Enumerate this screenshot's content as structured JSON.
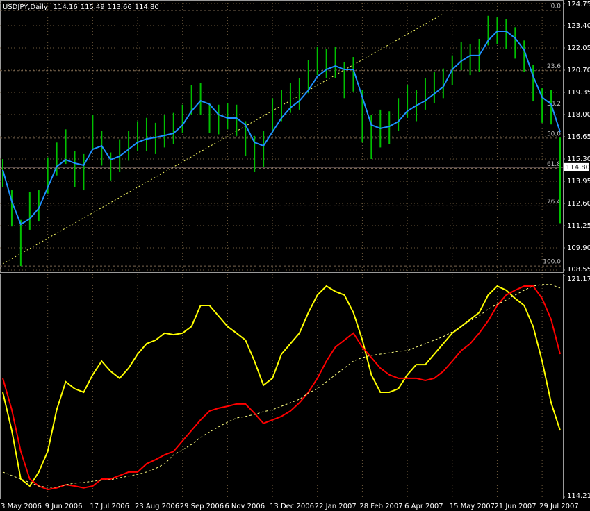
{
  "chart_data": [
    {
      "type": "ohlc",
      "title": "USDJPY,Daily",
      "header_values": [
        114.16,
        115.49,
        113.66,
        {
          "value": 114.8,
          "label": "114.80"
        }
      ],
      "ylim": [
        108.55,
        124.75
      ],
      "yticks": [
        108.55,
        {
          "value": 109.9,
          "label": "109.90"
        },
        111.25,
        {
          "value": 112.6,
          "label": "112.60"
        },
        113.95,
        {
          "value": 115.3,
          "label": "115.30"
        },
        116.65,
        {
          "value": 118,
          "label": "118.00"
        },
        119.35,
        {
          "value": 120.7,
          "label": "120.70"
        },
        122.05,
        {
          "value": 123.4,
          "label": "123.40"
        },
        124.75
      ],
      "grid": true,
      "bar_color": "#00c000",
      "ma_color": "#1e90ff",
      "high": [
        115.3,
        113.4,
        111.6,
        113.3,
        113.4,
        115.4,
        116.3,
        117.1,
        115.8,
        115.6,
        118.0,
        117.0,
        115.7,
        116.5,
        117.0,
        117.6,
        117.8,
        117.5,
        118.0,
        118.1,
        118.6,
        119.8,
        119.9,
        118.7,
        118.6,
        118.7,
        118.6,
        117.6,
        116.7,
        117.0,
        119.0,
        119.5,
        119.9,
        120.2,
        121.3,
        122.1,
        122.0,
        122.1,
        121.2,
        121.5,
        119.5,
        118.0,
        118.3,
        118.2,
        119.0,
        119.8,
        119.5,
        120.2,
        120.6,
        120.8,
        121.6,
        122.4,
        122.3,
        122.6,
        124.0,
        123.9,
        123.8,
        123.3,
        122.5,
        121.0,
        119.6,
        119.5,
        116.6
      ],
      "low": [
        113.6,
        111.2,
        108.8,
        111.0,
        111.5,
        113.2,
        114.3,
        115.0,
        113.6,
        113.4,
        115.9,
        114.9,
        114.0,
        114.5,
        115.2,
        115.8,
        115.8,
        115.6,
        116.0,
        116.2,
        116.9,
        118.0,
        118.0,
        116.9,
        116.8,
        117.1,
        116.7,
        115.5,
        114.5,
        114.8,
        116.9,
        117.6,
        118.1,
        118.3,
        119.3,
        120.4,
        120.2,
        120.2,
        119.0,
        119.4,
        116.3,
        115.3,
        116.0,
        116.2,
        117.0,
        117.8,
        117.6,
        118.3,
        118.7,
        119.0,
        119.8,
        120.7,
        120.4,
        120.6,
        122.2,
        122.3,
        122.0,
        121.4,
        120.6,
        118.8,
        117.5,
        117.4,
        111.4
      ],
      "ma": [
        114.63,
        112.73,
        111.33,
        111.67,
        112.3,
        113.57,
        114.84,
        115.26,
        115.05,
        114.92,
        115.89,
        116.1,
        115.26,
        115.47,
        115.89,
        116.31,
        116.52,
        116.61,
        116.73,
        116.86,
        117.37,
        118.21,
        118.84,
        118.63,
        118.0,
        117.79,
        117.79,
        117.37,
        116.31,
        116.1,
        116.95,
        117.79,
        118.42,
        118.84,
        119.48,
        120.32,
        120.74,
        120.95,
        120.74,
        120.74,
        119.05,
        117.37,
        117.16,
        117.28,
        117.58,
        118.21,
        118.55,
        118.84,
        119.27,
        119.69,
        120.74,
        121.25,
        121.59,
        121.59,
        122.51,
        123.06,
        123.06,
        122.64,
        121.92,
        120.32,
        119.05,
        118.63,
        116.95
      ],
      "fibo": [
        {
          "label": "0.0",
          "price": 124.33
        },
        {
          "label": "23.6",
          "price": 120.67
        },
        {
          "label": "38.2",
          "price": 118.4
        },
        {
          "label": "50.0",
          "price": 116.57
        },
        {
          "label": "61.8",
          "price": 114.73
        },
        {
          "label": "76.4",
          "price": 112.46
        },
        {
          "label": "100.0",
          "price": 108.8
        }
      ],
      "trendline": {
        "x": [
          0,
          49
        ],
        "y": [
          108.93,
          124.12
        ],
        "color": "#ffff66"
      },
      "current_price": {
        "value": 114.8,
        "label": "114.80"
      }
    },
    {
      "type": "line",
      "categories": [
        "3 May 2006",
        null,
        null,
        null,
        null,
        "9 Jun 2006",
        null,
        null,
        null,
        null,
        "17 Jul 2006",
        null,
        null,
        null,
        null,
        "23 Aug 2006",
        null,
        null,
        null,
        null,
        "29 Sep 2006",
        null,
        null,
        null,
        null,
        "6 Nov 2006",
        null,
        null,
        null,
        null,
        "13 Dec 2006",
        null,
        null,
        null,
        null,
        "22 Jan 2007",
        null,
        null,
        null,
        null,
        "28 Feb 2007",
        null,
        null,
        null,
        null,
        "6 Apr 2007",
        null,
        null,
        null,
        null,
        "15 May 2007",
        null,
        null,
        null,
        null,
        "21 Jun 2007",
        null,
        null,
        null,
        null,
        "29 Jul 2007",
        null,
        null
      ],
      "ylim": [
        114.211,
        121.179
      ],
      "yticks": [
        114.211,
        121.179
      ],
      "series": [
        {
          "color": "#ffff00",
          "values": [
            117.51,
            116.31,
            114.78,
            114.56,
            115.0,
            115.65,
            116.96,
            117.84,
            117.62,
            117.51,
            118.06,
            118.49,
            118.17,
            117.95,
            118.27,
            118.71,
            119.04,
            119.15,
            119.37,
            119.32,
            119.37,
            119.58,
            120.24,
            120.24,
            119.91,
            119.58,
            119.37,
            119.15,
            118.49,
            117.73,
            117.95,
            118.71,
            119.04,
            119.37,
            120.02,
            120.57,
            120.85,
            120.68,
            120.57,
            120.02,
            119.15,
            118.06,
            117.51,
            117.51,
            117.62,
            118.06,
            118.38,
            118.38,
            118.71,
            119.04,
            119.37,
            119.58,
            119.8,
            120.02,
            120.57,
            120.85,
            120.72,
            120.46,
            120.24,
            119.58,
            118.49,
            117.18,
            116.31
          ]
        },
        {
          "color": "#ff0000",
          "values": [
            117.95,
            116.96,
            115.65,
            114.78,
            114.56,
            114.45,
            114.5,
            114.6,
            114.56,
            114.5,
            114.56,
            114.78,
            114.78,
            114.89,
            115.0,
            115.0,
            115.26,
            115.39,
            115.54,
            115.65,
            115.98,
            116.31,
            116.64,
            116.92,
            117.01,
            117.07,
            117.14,
            117.14,
            116.85,
            116.53,
            116.64,
            116.75,
            116.92,
            117.18,
            117.51,
            117.95,
            118.49,
            118.93,
            119.15,
            119.37,
            118.93,
            118.6,
            118.27,
            118.06,
            117.95,
            117.95,
            117.95,
            117.88,
            117.95,
            118.17,
            118.49,
            118.82,
            119.04,
            119.37,
            119.76,
            120.24,
            120.57,
            120.72,
            120.85,
            120.85,
            120.46,
            119.8,
            118.71
          ]
        },
        {
          "color": "#ffff80",
          "dashed": true,
          "values": [
            115.0,
            114.89,
            114.78,
            114.67,
            114.56,
            114.52,
            114.52,
            114.6,
            114.65,
            114.67,
            114.71,
            114.74,
            114.76,
            114.82,
            114.87,
            114.93,
            115.0,
            115.11,
            115.26,
            115.54,
            115.7,
            115.87,
            116.09,
            116.26,
            116.42,
            116.57,
            116.7,
            116.75,
            116.81,
            116.9,
            116.96,
            117.07,
            117.18,
            117.29,
            117.49,
            117.62,
            117.84,
            118.06,
            118.27,
            118.49,
            118.6,
            118.67,
            118.71,
            118.75,
            118.8,
            118.82,
            118.93,
            119.04,
            119.15,
            119.26,
            119.41,
            119.58,
            119.76,
            119.91,
            120.13,
            120.28,
            120.41,
            120.57,
            120.72,
            120.85,
            120.9,
            120.9,
            120.79
          ]
        }
      ]
    }
  ]
}
